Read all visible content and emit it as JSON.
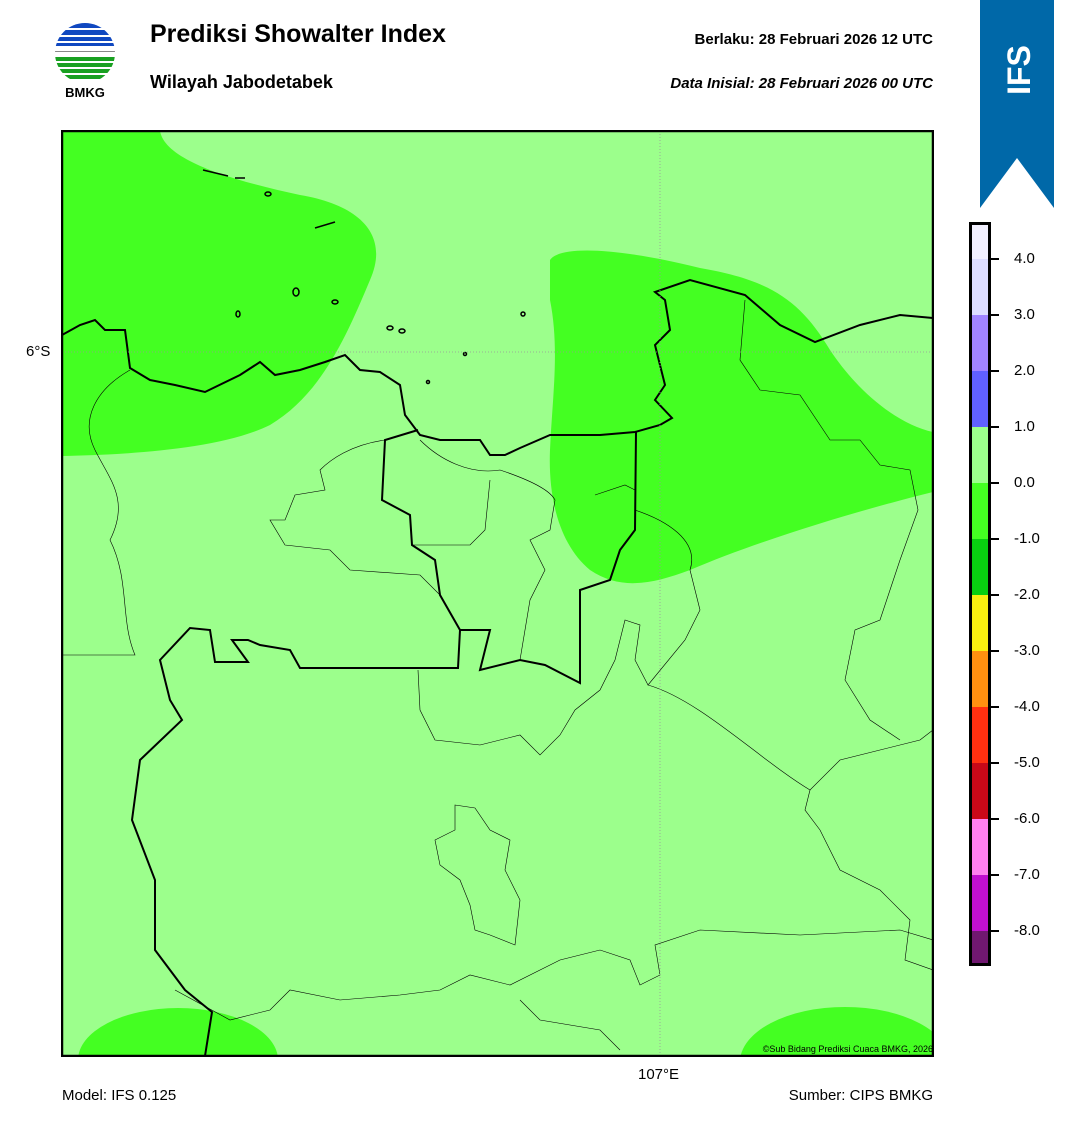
{
  "header": {
    "title": "Prediksi Showalter Index",
    "subtitle": "Wilayah Jabodetabek",
    "valid": "Berlaku:  28 Februari 2026 12 UTC",
    "initial": "Data Inisial:  28 Februari 2026 00 UTC"
  },
  "logo": {
    "text": "BMKG"
  },
  "badge": {
    "text": "IFS",
    "color": "#0068a8"
  },
  "map": {
    "lat_label": "6°S",
    "lon_label": "107°E",
    "credit": "©Sub Bidang Prediksi Cuaca BMKG, 2026",
    "background_color": "#9cff8c",
    "blob_color": "#44ff22"
  },
  "colorbar": {
    "ticks": [
      "4.0",
      "3.0",
      "2.0",
      "1.0",
      "0.0",
      "-1.0",
      "-2.0",
      "-3.0",
      "-4.0",
      "-5.0",
      "-6.0",
      "-7.0",
      "-8.0"
    ],
    "colors": [
      "#f2f0ff",
      "#dcdcff",
      "#a084ff",
      "#6060ff",
      "#9cff8c",
      "#44ff22",
      "#08d010",
      "#f8f010",
      "#ff9010",
      "#ff3010",
      "#c80818",
      "#ff80f0",
      "#c010d0",
      "#701870"
    ]
  },
  "footer": {
    "model": "Model: IFS 0.125",
    "source": "Sumber: CIPS BMKG"
  }
}
